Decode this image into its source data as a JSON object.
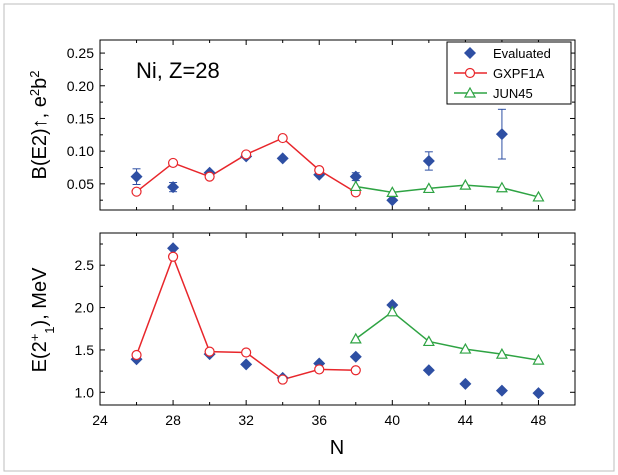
{
  "colors": {
    "evaluated": "#2e4fa3",
    "gxpf1a": "#e8262b",
    "jun45": "#2ea343",
    "frame": "#000000"
  },
  "chart_data": [
    {
      "type": "scatter",
      "annotation": "Ni, Z=28",
      "ylabel": "B(E2)↑, e²b²",
      "ylabel_parts": [
        "B(E2)",
        "↑",
        ", e",
        "2",
        "b",
        "2"
      ],
      "xlim": [
        24,
        50
      ],
      "ylim": [
        0.01,
        0.27
      ],
      "x_ticks": [
        24,
        28,
        32,
        36,
        40,
        44,
        48
      ],
      "y_ticks": [
        0.05,
        0.1,
        0.15,
        0.2,
        0.25
      ],
      "y_tick_labels": [
        "0.05",
        "0.10",
        "0.15",
        "0.20",
        "0.25"
      ],
      "legend": {
        "position": "top-right",
        "entries": [
          "Evaluated",
          "GXPF1A",
          "JUN45"
        ]
      },
      "series": [
        {
          "name": "Evaluated",
          "style": "diamond-points",
          "x": [
            26,
            28,
            30,
            32,
            34,
            36,
            38,
            40,
            42,
            46
          ],
          "y": [
            0.061,
            0.045,
            0.067,
            0.092,
            0.089,
            0.064,
            0.061,
            0.025,
            0.085,
            0.126
          ],
          "err": [
            0.012,
            0.007,
            0.0,
            0.0,
            0.0,
            0.0,
            0.006,
            0.0,
            0.014,
            0.038
          ]
        },
        {
          "name": "GXPF1A",
          "style": "line-open-circle",
          "x": [
            26,
            28,
            30,
            32,
            34,
            36,
            38
          ],
          "y": [
            0.038,
            0.082,
            0.061,
            0.095,
            0.12,
            0.071,
            0.037
          ]
        },
        {
          "name": "JUN45",
          "style": "line-open-triangle",
          "x": [
            38,
            40,
            42,
            44,
            46,
            48
          ],
          "y": [
            0.046,
            0.037,
            0.043,
            0.048,
            0.044,
            0.03
          ]
        }
      ]
    },
    {
      "type": "scatter",
      "xlabel": "N",
      "ylabel": "E(2⁺₁), MeV",
      "ylabel_parts": [
        "E(2",
        "+",
        "1",
        "), MeV"
      ],
      "xlim": [
        24,
        50
      ],
      "ylim": [
        0.85,
        2.88
      ],
      "x_ticks": [
        24,
        28,
        32,
        36,
        40,
        44,
        48
      ],
      "x_tick_labels": [
        "24",
        "28",
        "32",
        "36",
        "40",
        "44",
        "48"
      ],
      "y_ticks": [
        1.0,
        1.5,
        2.0,
        2.5
      ],
      "y_tick_labels": [
        "1.0",
        "1.5",
        "2.0",
        "2.5"
      ],
      "series": [
        {
          "name": "Evaluated",
          "style": "diamond-points",
          "x": [
            26,
            28,
            30,
            32,
            34,
            36,
            38,
            40,
            42,
            44,
            46,
            48
          ],
          "y": [
            1.39,
            2.7,
            1.45,
            1.33,
            1.17,
            1.34,
            1.42,
            2.03,
            1.26,
            1.1,
            1.02,
            0.99
          ]
        },
        {
          "name": "GXPF1A",
          "style": "line-open-circle",
          "x": [
            26,
            28,
            30,
            32,
            34,
            36,
            38
          ],
          "y": [
            1.44,
            2.6,
            1.48,
            1.47,
            1.15,
            1.27,
            1.26
          ]
        },
        {
          "name": "JUN45",
          "style": "line-open-triangle",
          "x": [
            38,
            40,
            42,
            44,
            46,
            48
          ],
          "y": [
            1.63,
            1.95,
            1.6,
            1.51,
            1.45,
            1.38
          ]
        }
      ]
    }
  ]
}
